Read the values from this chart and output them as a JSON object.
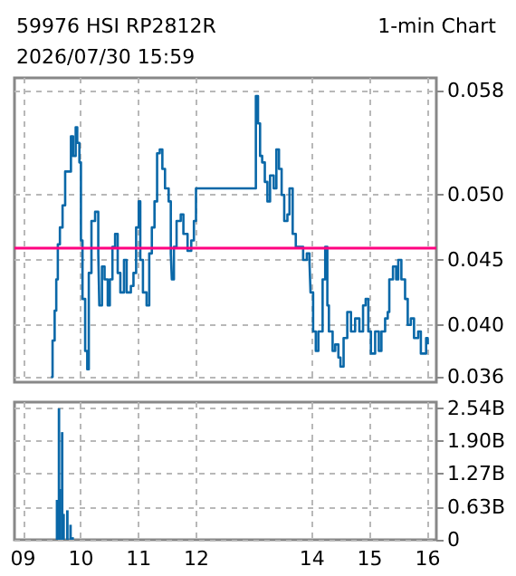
{
  "chart_data": [
    {
      "type": "step",
      "title": "59976 HSI RP2812R",
      "subtitle": "2026/07/30 15:59",
      "annotations": [
        "1-min Chart"
      ],
      "x": [
        9.482,
        9.509,
        9.545,
        9.573,
        9.6,
        9.636,
        9.682,
        9.727,
        9.773,
        9.827,
        9.864,
        9.909,
        9.936,
        9.973,
        10,
        10.027,
        10.073,
        10.109,
        10.136,
        10.182,
        10.245,
        10.3,
        10.318,
        10.364,
        10.409,
        10.464,
        10.5,
        10.545,
        10.591,
        10.636,
        10.682,
        10.745,
        10.791,
        10.864,
        10.909,
        10.955,
        11,
        11.027,
        11.073,
        11.136,
        11.182,
        11.227,
        11.273,
        11.318,
        11.364,
        11.409,
        11.455,
        11.518,
        11.555,
        11.573,
        11.609,
        11.655,
        11.727,
        11.773,
        11.845,
        11.909,
        11.955,
        11.991,
        13.027,
        13.064,
        13.1,
        13.136,
        13.182,
        13.227,
        13.273,
        13.336,
        13.382,
        13.427,
        13.473,
        13.518,
        13.573,
        13.609,
        13.664,
        13.718,
        13.773,
        13.845,
        13.909,
        13.955,
        13.973,
        14.018,
        14.064,
        14.109,
        14.182,
        14.227,
        14.264,
        14.291,
        14.355,
        14.4,
        14.455,
        14.491,
        14.545,
        14.609,
        14.673,
        14.745,
        14.818,
        14.882,
        14.927,
        14.973,
        15.018,
        15.091,
        15.155,
        15.2,
        15.264,
        15.309,
        15.336,
        15.4,
        15.455,
        15.491,
        15.545,
        15.609,
        15.655,
        15.709,
        15.764,
        15.836,
        15.882,
        15.927,
        15.973,
        16.0
      ],
      "series": [
        {
          "color": "#0a68a8",
          "values": [
            0.036,
            0.0388,
            0.0411,
            0.0435,
            0.0462,
            0.0475,
            0.0492,
            0.0518,
            0.0518,
            0.0545,
            0.053,
            0.0552,
            0.054,
            0.0525,
            0.0465,
            0.042,
            0.038,
            0.0366,
            0.044,
            0.048,
            0.0487,
            0.0455,
            0.0415,
            0.0445,
            0.0435,
            0.0415,
            0.0435,
            0.046,
            0.047,
            0.044,
            0.0425,
            0.045,
            0.0425,
            0.043,
            0.044,
            0.0475,
            0.0495,
            0.045,
            0.0425,
            0.0415,
            0.0455,
            0.0475,
            0.0495,
            0.0532,
            0.0535,
            0.052,
            0.0505,
            0.0495,
            0.0455,
            0.0435,
            0.046,
            0.048,
            0.0485,
            0.047,
            0.0457,
            0.0465,
            0.048,
            0.0505,
            0.0576,
            0.0555,
            0.053,
            0.0525,
            0.051,
            0.0495,
            0.0515,
            0.0505,
            0.0535,
            0.052,
            0.05,
            0.048,
            0.0485,
            0.0505,
            0.047,
            0.046,
            0.046,
            0.045,
            0.0455,
            0.0448,
            0.0425,
            0.0395,
            0.038,
            0.0395,
            0.0435,
            0.046,
            0.0415,
            0.0395,
            0.038,
            0.0385,
            0.0375,
            0.0368,
            0.039,
            0.041,
            0.0395,
            0.0405,
            0.0395,
            0.0415,
            0.042,
            0.0395,
            0.0378,
            0.0395,
            0.038,
            0.0395,
            0.0405,
            0.041,
            0.0435,
            0.0445,
            0.0435,
            0.045,
            0.0435,
            0.042,
            0.04,
            0.0405,
            0.039,
            0.0395,
            0.0378,
            0.0378,
            0.039,
            0.0385
          ]
        }
      ],
      "xlim": [
        8.85,
        16.15
      ],
      "xticks": [
        9,
        10,
        11,
        12,
        14,
        15,
        16
      ],
      "ylim": [
        0.0356,
        0.059
      ],
      "yticks": [
        {
          "value": 0.036,
          "label": "0.036"
        },
        {
          "value": 0.04,
          "label": "0.040"
        },
        {
          "value": 0.045,
          "label": "0.045"
        },
        {
          "value": 0.05,
          "label": "0.050"
        },
        {
          "value": 0.058,
          "label": "0.058"
        }
      ],
      "ref_lines": [
        {
          "axis": "y",
          "value": 0.046,
          "color": "#ff0080"
        }
      ],
      "grid": true,
      "tick_labels": "y"
    },
    {
      "type": "bar",
      "x": [
        9.586,
        9.62,
        9.64,
        9.675,
        9.7,
        9.765,
        9.82,
        9.856
      ],
      "series": [
        {
          "color": "#0a68a8",
          "values": [
            0.77,
            2.54,
            0.98,
            2.08,
            0.5,
            0.57,
            0.29,
            0.05
          ]
        }
      ],
      "xlim": [
        8.85,
        16.15
      ],
      "xticks": [
        {
          "value": 9,
          "label": "09"
        },
        10,
        11,
        12,
        14,
        15,
        16
      ],
      "ylim": [
        0,
        2.66
      ],
      "yticks": [
        0,
        {
          "value": 0.63,
          "label": "0.63B"
        },
        {
          "value": 1.27,
          "label": "1.27B"
        },
        {
          "value": 1.9,
          "label": "1.90B"
        },
        {
          "value": 2.54,
          "label": "2.54B"
        }
      ],
      "grid": true
    }
  ]
}
